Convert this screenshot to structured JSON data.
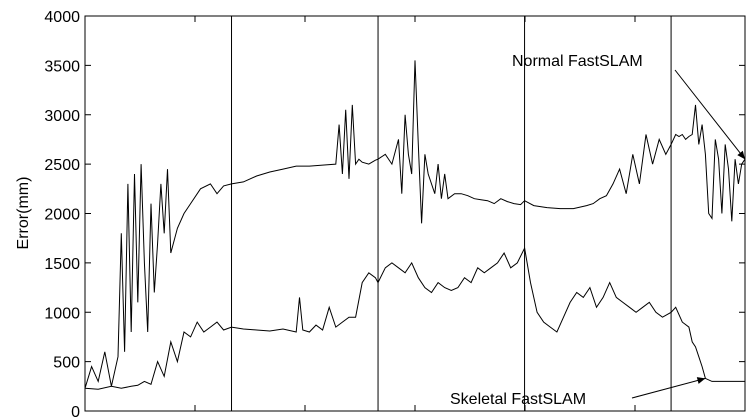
{
  "chart_data": {
    "type": "line",
    "title": "",
    "xlabel": "",
    "ylabel": "Error(mm)",
    "ylim": [
      0,
      4000
    ],
    "xlim": [
      0,
      1000
    ],
    "y_ticks": [
      "0",
      "500",
      "1000",
      "1500",
      "2000",
      "2500",
      "3000",
      "3500",
      "4000"
    ],
    "grid": false,
    "vertical_markers": [
      222,
      444,
      666,
      888
    ],
    "annotations": [
      {
        "text": "Normal FastSLAM",
        "series": 0,
        "target": [
          1000,
          2550
        ]
      },
      {
        "text": "Skeletal FastSLAM",
        "series": 1,
        "target": [
          940,
          330
        ]
      }
    ],
    "series": [
      {
        "name": "Normal FastSLAM",
        "x": [
          0,
          10,
          20,
          30,
          40,
          50,
          55,
          60,
          65,
          70,
          75,
          80,
          85,
          90,
          95,
          100,
          105,
          110,
          115,
          120,
          125,
          130,
          140,
          150,
          160,
          175,
          190,
          200,
          210,
          222,
          240,
          260,
          280,
          300,
          320,
          340,
          360,
          380,
          385,
          390,
          395,
          400,
          405,
          410,
          415,
          420,
          430,
          440,
          444,
          455,
          465,
          475,
          480,
          485,
          490,
          495,
          500,
          505,
          510,
          515,
          520,
          525,
          530,
          535,
          540,
          545,
          550,
          560,
          570,
          580,
          590,
          600,
          610,
          620,
          630,
          640,
          650,
          660,
          666,
          680,
          700,
          720,
          740,
          760,
          770,
          780,
          790,
          800,
          810,
          820,
          830,
          840,
          850,
          860,
          870,
          880,
          888,
          895,
          900,
          905,
          910,
          915,
          920,
          925,
          930,
          935,
          940,
          945,
          950,
          955,
          960,
          965,
          970,
          975,
          980,
          985,
          990,
          995,
          1000
        ],
        "y": [
          230,
          450,
          300,
          600,
          250,
          550,
          1800,
          600,
          2300,
          800,
          2400,
          1100,
          2500,
          1500,
          800,
          2100,
          1200,
          1700,
          2300,
          1800,
          2450,
          1600,
          1850,
          2000,
          2100,
          2250,
          2300,
          2200,
          2280,
          2300,
          2320,
          2380,
          2420,
          2450,
          2480,
          2480,
          2490,
          2500,
          2900,
          2400,
          3050,
          2350,
          3100,
          2500,
          2550,
          2520,
          2500,
          2540,
          2550,
          2600,
          2500,
          2750,
          2200,
          3000,
          2600,
          2400,
          3550,
          2700,
          1900,
          2600,
          2400,
          2300,
          2200,
          2500,
          2150,
          2400,
          2150,
          2200,
          2200,
          2180,
          2150,
          2140,
          2130,
          2100,
          2150,
          2120,
          2100,
          2090,
          2130,
          2080,
          2060,
          2050,
          2050,
          2080,
          2100,
          2150,
          2180,
          2300,
          2450,
          2200,
          2600,
          2300,
          2800,
          2500,
          2750,
          2600,
          2700,
          2800,
          2780,
          2800,
          2750,
          2780,
          2800,
          3100,
          2700,
          2900,
          2600,
          2000,
          1950,
          2750,
          2550,
          2000,
          2700,
          2450,
          1920,
          2550,
          2300,
          2500,
          2550
        ]
      },
      {
        "name": "Skeletal FastSLAM",
        "x": [
          0,
          20,
          40,
          55,
          70,
          80,
          90,
          100,
          110,
          120,
          130,
          140,
          150,
          160,
          170,
          180,
          190,
          200,
          210,
          222,
          240,
          260,
          280,
          300,
          320,
          325,
          330,
          340,
          350,
          360,
          370,
          380,
          390,
          400,
          410,
          420,
          430,
          440,
          444,
          455,
          465,
          475,
          485,
          495,
          505,
          515,
          525,
          535,
          545,
          555,
          565,
          575,
          585,
          595,
          605,
          615,
          625,
          635,
          645,
          655,
          666,
          675,
          685,
          695,
          705,
          715,
          725,
          735,
          745,
          755,
          765,
          775,
          785,
          795,
          805,
          815,
          825,
          835,
          845,
          855,
          865,
          875,
          888,
          895,
          905,
          915,
          920,
          925,
          930,
          935,
          940,
          950,
          960,
          970,
          980,
          1000
        ],
        "y": [
          230,
          220,
          250,
          230,
          250,
          260,
          300,
          270,
          500,
          350,
          700,
          500,
          800,
          750,
          900,
          800,
          850,
          900,
          820,
          850,
          830,
          820,
          810,
          830,
          800,
          1150,
          820,
          800,
          870,
          820,
          1050,
          850,
          900,
          950,
          950,
          1300,
          1400,
          1350,
          1300,
          1450,
          1500,
          1450,
          1400,
          1500,
          1350,
          1250,
          1200,
          1300,
          1250,
          1220,
          1250,
          1350,
          1300,
          1450,
          1400,
          1450,
          1500,
          1600,
          1450,
          1500,
          1650,
          1300,
          1000,
          900,
          850,
          800,
          950,
          1100,
          1200,
          1150,
          1250,
          1050,
          1150,
          1300,
          1150,
          1100,
          1050,
          1000,
          1050,
          1100,
          1000,
          950,
          1000,
          1050,
          900,
          850,
          700,
          650,
          550,
          450,
          330,
          300,
          300,
          300,
          300,
          300
        ]
      }
    ]
  }
}
